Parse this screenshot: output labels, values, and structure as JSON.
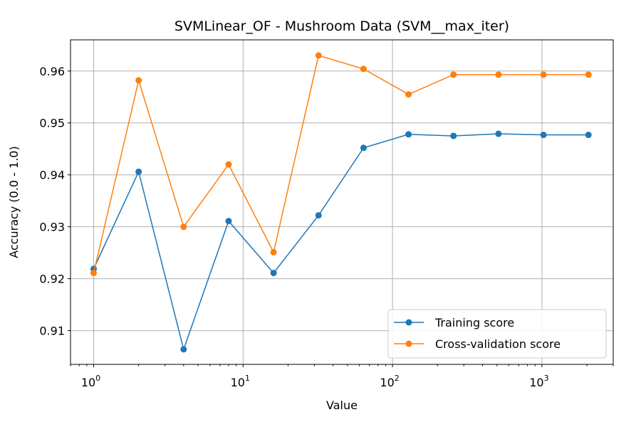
{
  "chart_data": {
    "type": "line",
    "title": "SVMLinear_OF - Mushroom Data (SVM__max_iter)",
    "xlabel": "Value",
    "ylabel": "Accuracy (0.0 - 1.0)",
    "xscale": "log",
    "xlim": [
      0.7,
      3000
    ],
    "ylim": [
      0.9035,
      0.966
    ],
    "grid": true,
    "legend_position": "lower-right",
    "x": [
      1,
      2,
      4,
      8,
      16,
      32,
      64,
      128,
      256,
      512,
      1024,
      2048
    ],
    "x_ticks": [
      {
        "value": 1,
        "base": "10",
        "exp": "0"
      },
      {
        "value": 10,
        "base": "10",
        "exp": "1"
      },
      {
        "value": 100,
        "base": "10",
        "exp": "2"
      },
      {
        "value": 1000,
        "base": "10",
        "exp": "3"
      }
    ],
    "y_ticks": [
      {
        "value": 0.91,
        "label": "0.91"
      },
      {
        "value": 0.92,
        "label": "0.92"
      },
      {
        "value": 0.93,
        "label": "0.93"
      },
      {
        "value": 0.94,
        "label": "0.94"
      },
      {
        "value": 0.95,
        "label": "0.95"
      },
      {
        "value": 0.96,
        "label": "0.96"
      }
    ],
    "series": [
      {
        "name": "Training score",
        "color": "#1f77b4",
        "values": [
          0.9219,
          0.9406,
          0.9064,
          0.9311,
          0.9211,
          0.9322,
          0.9452,
          0.9478,
          0.9475,
          0.9479,
          0.9477,
          0.9477
        ]
      },
      {
        "name": "Cross-validation score",
        "color": "#ff7f0e",
        "values": [
          0.9211,
          0.9582,
          0.93,
          0.942,
          0.9251,
          0.963,
          0.9604,
          0.9555,
          0.9593,
          0.9593,
          0.9593,
          0.9593
        ]
      }
    ]
  }
}
